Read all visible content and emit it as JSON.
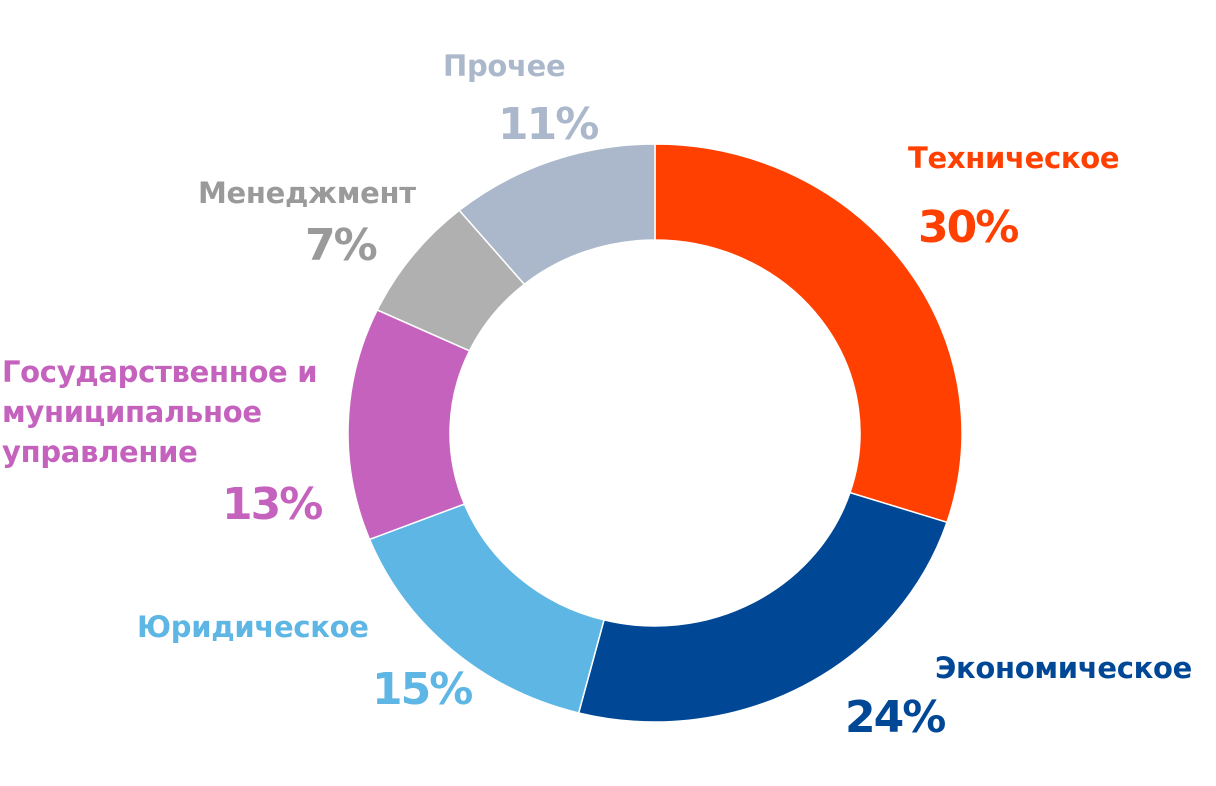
{
  "chart_data": {
    "type": "pie",
    "variant": "donut",
    "start": "top",
    "direction": "clockwise",
    "slices": [
      {
        "label": "Техническое",
        "value": 30,
        "pct_label": "30%",
        "color": "#FF4000",
        "text_color": "#FF4000"
      },
      {
        "label": "Экономическое",
        "value": 24,
        "pct_label": "24%",
        "color": "#004896",
        "text_color": "#004896"
      },
      {
        "label": "Юридическое",
        "value": 15,
        "pct_label": "15%",
        "color": "#5EB6E4",
        "text_color": "#5EB6E4"
      },
      {
        "label": "Государственное и муниципальное управление",
        "value": 13,
        "pct_label": "13%",
        "color": "#C462BE",
        "text_color": "#C462BE"
      },
      {
        "label": "Менеджмент",
        "value": 7,
        "pct_label": "7%",
        "color": "#B0B0B0",
        "text_color": "#9A9A9A"
      },
      {
        "label": "Прочее",
        "value": 11,
        "pct_label": "11%",
        "color": "#ABB8CB",
        "text_color": "#ABB8CB"
      }
    ]
  }
}
